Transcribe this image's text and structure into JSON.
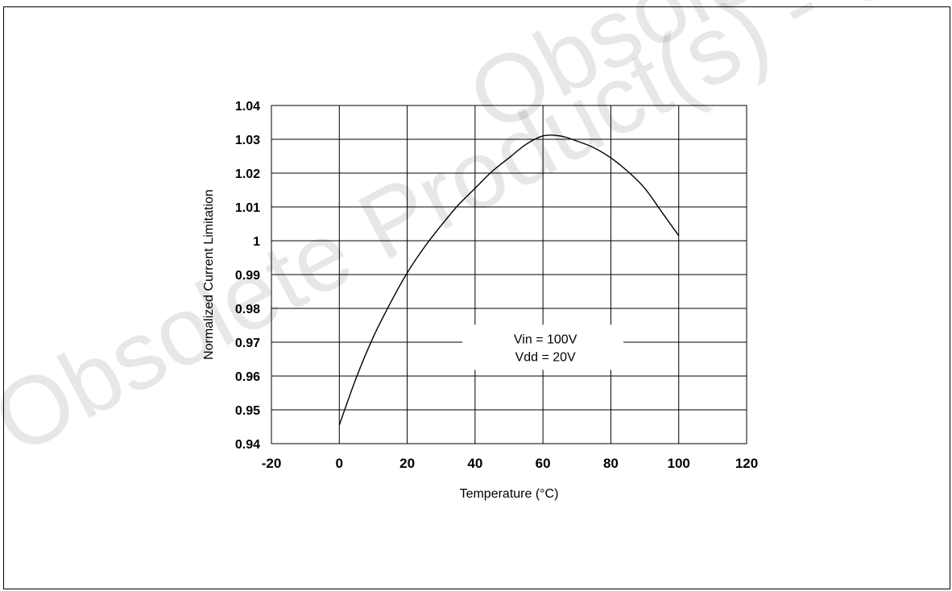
{
  "watermark": "Obsolete Product(s) - Obsolete Product(s)",
  "chart_data": {
    "type": "line",
    "title": "",
    "xlabel": "Temperature (°C)",
    "ylabel": "Normalized Current Limitation",
    "xlim": [
      -20,
      120
    ],
    "ylim": [
      0.94,
      1.04
    ],
    "x_ticks": [
      "-20",
      "0",
      "20",
      "40",
      "60",
      "80",
      "100",
      "120"
    ],
    "y_ticks": [
      "0.94",
      "0.95",
      "0.96",
      "0.97",
      "0.98",
      "0.99",
      "1",
      "1.01",
      "1.02",
      "1.03",
      "1.04"
    ],
    "grid": true,
    "annotation": [
      "Vin = 100V",
      "Vdd = 20V"
    ],
    "series": [
      {
        "x": [
          0,
          5,
          10,
          15,
          20,
          25,
          30,
          35,
          40,
          45,
          50,
          55,
          60,
          65,
          70,
          75,
          80,
          85,
          90,
          95,
          100
        ],
        "y": [
          0.9455,
          0.9595,
          0.9715,
          0.9815,
          0.9905,
          0.998,
          1.0045,
          1.0105,
          1.0155,
          1.0205,
          1.0245,
          1.0285,
          1.031,
          1.031,
          1.0295,
          1.0275,
          1.0245,
          1.0205,
          1.0155,
          1.0085,
          1.0015
        ]
      }
    ]
  }
}
